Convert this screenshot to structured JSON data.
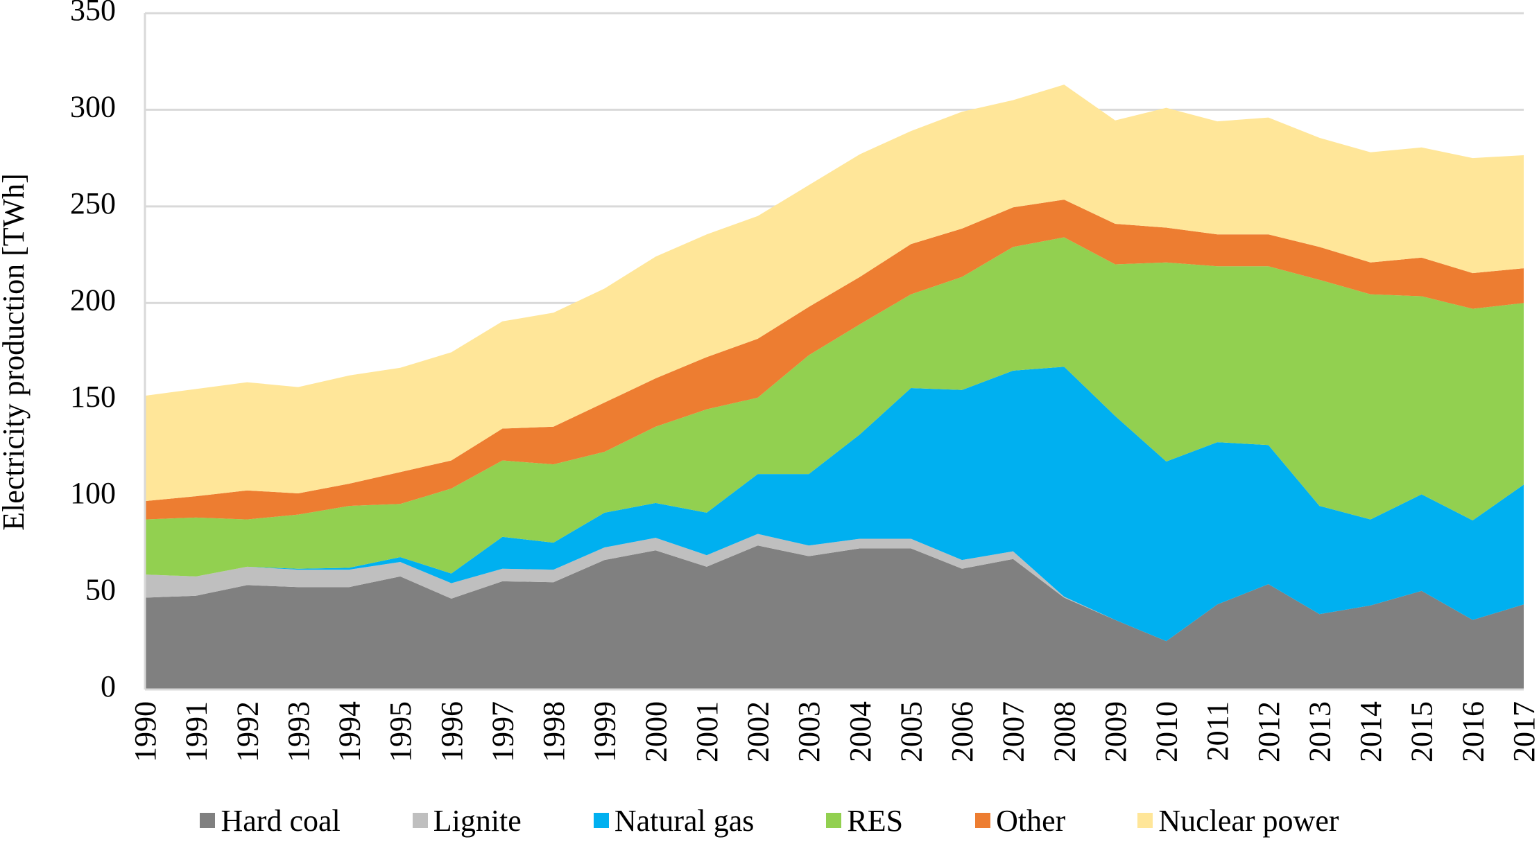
{
  "chart_data": {
    "type": "area",
    "stacked": true,
    "title": "",
    "xlabel": "",
    "ylabel": "Electricity  production  [TWh]",
    "ylim": [
      0,
      350
    ],
    "yticks": [
      0,
      50,
      100,
      150,
      200,
      250,
      300,
      350
    ],
    "grid": "horizontal",
    "legend_position": "bottom",
    "x": [
      "1990",
      "1991",
      "1992",
      "1993",
      "1994",
      "1995",
      "1996",
      "1997",
      "1998",
      "1999",
      "2000",
      "2001",
      "2002",
      "2003",
      "2004",
      "2005",
      "2006",
      "2007",
      "2008",
      "2009",
      "2010",
      "2011",
      "2012",
      "2013",
      "2014",
      "2015",
      "2016",
      "2017"
    ],
    "series": [
      {
        "name": "Hard coal",
        "color": "#808080",
        "values": [
          47.5,
          48.5,
          54,
          53,
          53,
          58.5,
          47,
          56,
          55.5,
          67,
          72,
          63.5,
          74.5,
          69,
          73,
          73,
          62.5,
          67.5,
          47.5,
          36,
          25,
          44,
          54.5,
          39,
          43.5,
          51,
          36,
          44
        ]
      },
      {
        "name": "Lignite",
        "color": "#BFBFBF",
        "values": [
          12,
          10,
          9.5,
          9,
          9,
          7.5,
          8,
          6.5,
          6.5,
          6.5,
          6.5,
          6,
          6,
          5.5,
          5,
          5,
          4.5,
          4,
          0.5,
          0,
          0,
          0,
          0,
          0,
          0,
          0,
          0,
          0
        ]
      },
      {
        "name": "Natural gas",
        "color": "#00B0F0",
        "values": [
          0,
          0,
          0,
          0.5,
          1,
          2.5,
          5,
          16.5,
          14,
          18,
          18,
          22,
          31,
          37,
          54,
          78,
          88,
          93.5,
          119,
          105.5,
          93,
          84,
          72,
          56,
          44.5,
          50,
          51.5,
          62
        ]
      },
      {
        "name": "RES",
        "color": "#92D050",
        "values": [
          28.5,
          30.5,
          24.5,
          28,
          32,
          27.5,
          44,
          39.5,
          40.5,
          31.5,
          39.5,
          53.5,
          39.5,
          61.5,
          57,
          48.5,
          58.5,
          64,
          67,
          78.5,
          103,
          91,
          92.5,
          117,
          116.5,
          102.5,
          109.5,
          94
        ]
      },
      {
        "name": "Other",
        "color": "#ED7D31",
        "values": [
          9.5,
          11,
          15,
          11,
          11.5,
          16.5,
          14.5,
          16.5,
          19.5,
          25.5,
          25,
          27,
          30.5,
          25,
          24.5,
          26,
          25,
          20.5,
          19.5,
          21,
          18,
          16.5,
          16.5,
          17,
          16.5,
          20,
          18.5,
          18
        ]
      },
      {
        "name": "Nuclear power",
        "color": "#FFE699",
        "values": [
          54.5,
          55.5,
          56,
          55,
          56,
          54,
          56,
          55.5,
          59,
          59,
          63,
          63.5,
          63.5,
          63,
          63.5,
          58.5,
          60.5,
          55.5,
          59.5,
          53.5,
          62,
          58.5,
          60.5,
          56.5,
          57,
          57,
          59.5,
          58.5
        ]
      }
    ]
  }
}
